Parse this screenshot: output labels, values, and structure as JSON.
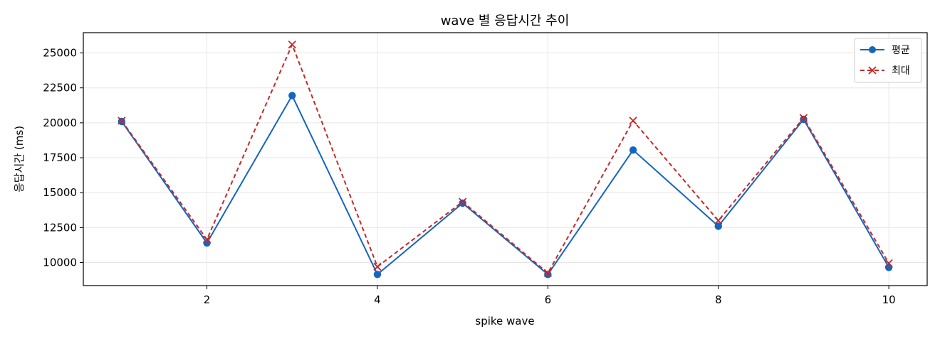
{
  "chart_data": {
    "type": "line",
    "title": "wave 별 응답시간 추이",
    "xlabel": "spike wave",
    "ylabel": "응답시간 (ms)",
    "x": [
      1,
      2,
      3,
      4,
      5,
      6,
      7,
      8,
      9,
      10
    ],
    "xlim": [
      0.55,
      10.45
    ],
    "ylim": [
      8350,
      26450
    ],
    "xticks": [
      2,
      4,
      6,
      8,
      10
    ],
    "yticks": [
      10000,
      12500,
      15000,
      17500,
      20000,
      22500,
      25000
    ],
    "grid": true,
    "legend_position": "top-right",
    "series": [
      {
        "name": "평균",
        "color": "#1565c0",
        "marker": "circle",
        "linestyle": "solid",
        "values": [
          20100,
          11400,
          21950,
          9150,
          14250,
          9150,
          18050,
          12600,
          20250,
          9650
        ]
      },
      {
        "name": "최대",
        "color": "#c62828",
        "marker": "x",
        "linestyle": "dashed",
        "values": [
          20150,
          11650,
          25600,
          9700,
          14350,
          9250,
          20150,
          13000,
          20350,
          9950
        ]
      }
    ]
  }
}
